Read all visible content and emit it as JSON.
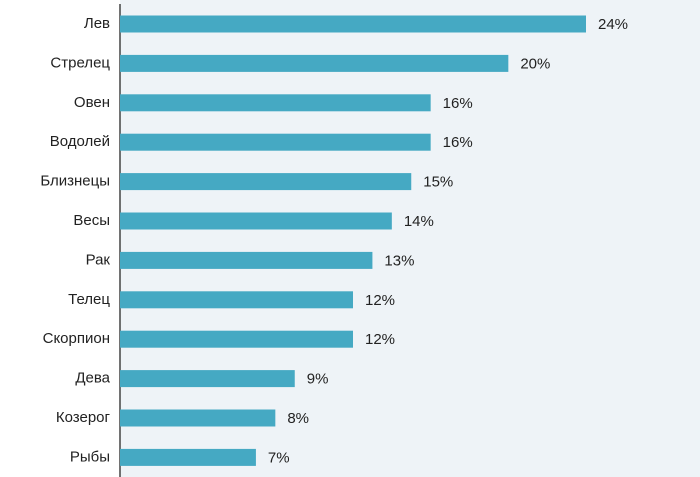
{
  "chart_data": {
    "type": "bar",
    "orientation": "horizontal",
    "categories": [
      "Лев",
      "Стрелец",
      "Овен",
      "Водолей",
      "Близнецы",
      "Весы",
      "Рак",
      "Телец",
      "Скорпион",
      "Дева",
      "Козерог",
      "Рыбы"
    ],
    "values": [
      24,
      20,
      16,
      16,
      15,
      14,
      13,
      12,
      12,
      9,
      8,
      7
    ],
    "value_labels": [
      "24%",
      "20%",
      "16%",
      "16%",
      "15%",
      "14%",
      "13%",
      "12%",
      "12%",
      "9%",
      "8%",
      "7%"
    ],
    "color": "#45a9c3"
  }
}
